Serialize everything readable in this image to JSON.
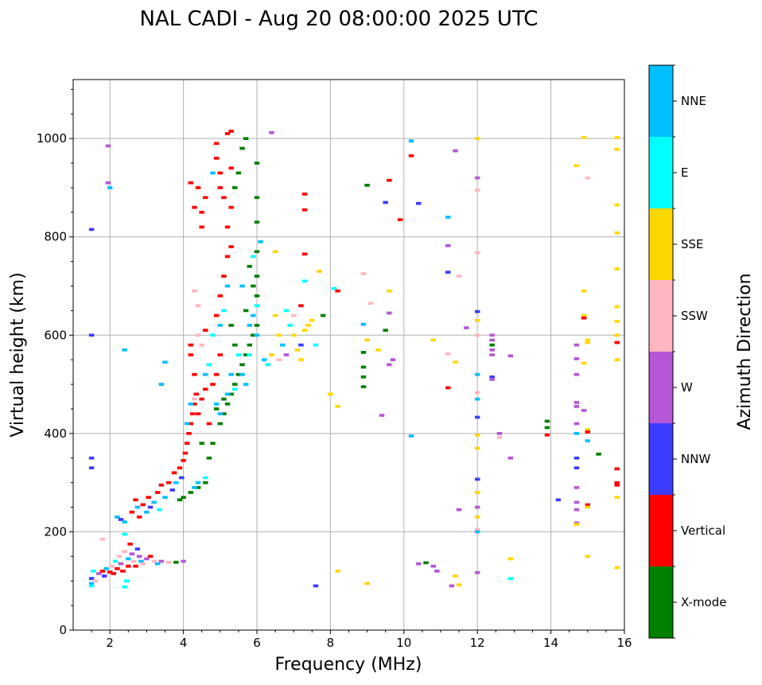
{
  "chart_data": {
    "type": "scatter",
    "title": "NAL CADI - Aug 20 08:00:00 2025 UTC",
    "xlabel": "Frequency (MHz)",
    "ylabel": "Virtual height (km)",
    "xlim": [
      1,
      16
    ],
    "ylim": [
      0,
      1120
    ],
    "xticks": [
      2,
      4,
      6,
      8,
      10,
      12,
      14,
      16
    ],
    "yticks": [
      0,
      200,
      400,
      600,
      800,
      1000
    ],
    "grid": true,
    "colorbar": {
      "label": "Azimuth Direction",
      "categories": [
        "X-mode",
        "Vertical",
        "NNW",
        "W",
        "SSW",
        "SSE",
        "E",
        "NNE"
      ],
      "colors": [
        "#008000",
        "#ff0000",
        "#3c3cff",
        "#b656d6",
        "#ffb6c1",
        "#ffd700",
        "#00ffff",
        "#00bfff"
      ]
    },
    "point_format": [
      "frequency_MHz",
      "height_km",
      "direction_index"
    ],
    "points": [
      [
        1.5,
        95,
        7
      ],
      [
        1.5,
        105,
        2
      ],
      [
        1.55,
        120,
        6
      ],
      [
        1.6,
        100,
        4
      ],
      [
        1.7,
        115,
        3
      ],
      [
        1.8,
        120,
        1
      ],
      [
        1.85,
        110,
        2
      ],
      [
        1.9,
        125,
        7
      ],
      [
        2.0,
        118,
        1
      ],
      [
        2.05,
        130,
        4
      ],
      [
        2.1,
        115,
        1
      ],
      [
        2.15,
        140,
        6
      ],
      [
        2.2,
        125,
        1
      ],
      [
        2.25,
        150,
        4
      ],
      [
        2.3,
        135,
        3
      ],
      [
        2.35,
        120,
        1
      ],
      [
        2.4,
        160,
        4
      ],
      [
        2.45,
        100,
        6
      ],
      [
        2.5,
        130,
        1
      ],
      [
        2.5,
        145,
        7
      ],
      [
        2.55,
        175,
        1
      ],
      [
        2.6,
        155,
        3
      ],
      [
        2.65,
        140,
        4
      ],
      [
        2.7,
        130,
        1
      ],
      [
        2.75,
        165,
        2
      ],
      [
        2.8,
        150,
        3
      ],
      [
        2.85,
        140,
        7
      ],
      [
        2.9,
        135,
        4
      ],
      [
        3.0,
        145,
        3
      ],
      [
        3.1,
        150,
        1
      ],
      [
        3.2,
        140,
        4
      ],
      [
        3.3,
        135,
        7
      ],
      [
        3.4,
        140,
        3
      ],
      [
        3.6,
        138,
        4
      ],
      [
        3.8,
        138,
        0
      ],
      [
        4.0,
        140,
        3
      ],
      [
        1.5,
        90,
        6
      ],
      [
        2.4,
        88,
        6
      ],
      [
        1.8,
        185,
        4
      ],
      [
        2.4,
        195,
        6
      ],
      [
        2.2,
        230,
        7
      ],
      [
        2.3,
        225,
        2
      ],
      [
        2.4,
        220,
        7
      ],
      [
        2.6,
        240,
        1
      ],
      [
        2.7,
        265,
        1
      ],
      [
        2.75,
        250,
        7
      ],
      [
        2.8,
        230,
        1
      ],
      [
        2.9,
        255,
        1
      ],
      [
        3.0,
        240,
        7
      ],
      [
        3.05,
        270,
        1
      ],
      [
        3.1,
        250,
        2
      ],
      [
        3.2,
        260,
        7
      ],
      [
        3.3,
        280,
        1
      ],
      [
        3.35,
        245,
        6
      ],
      [
        3.4,
        295,
        1
      ],
      [
        3.5,
        270,
        7
      ],
      [
        3.6,
        300,
        1
      ],
      [
        3.7,
        285,
        2
      ],
      [
        3.75,
        320,
        1
      ],
      [
        3.8,
        300,
        7
      ],
      [
        3.9,
        330,
        1
      ],
      [
        3.95,
        310,
        2
      ],
      [
        4.0,
        345,
        1
      ],
      [
        4.05,
        360,
        1
      ],
      [
        4.1,
        380,
        1
      ],
      [
        4.15,
        400,
        1
      ],
      [
        4.2,
        420,
        1
      ],
      [
        4.25,
        440,
        1
      ],
      [
        4.3,
        460,
        1
      ],
      [
        4.35,
        480,
        1
      ],
      [
        4.1,
        420,
        7
      ],
      [
        4.2,
        460,
        7
      ],
      [
        4.3,
        470,
        4
      ],
      [
        4.4,
        440,
        1
      ],
      [
        4.5,
        470,
        1
      ],
      [
        4.6,
        490,
        1
      ],
      [
        4.7,
        420,
        1
      ],
      [
        4.8,
        500,
        1
      ],
      [
        4.9,
        520,
        1
      ],
      [
        5.0,
        560,
        1
      ],
      [
        4.2,
        560,
        1
      ],
      [
        4.2,
        580,
        1
      ],
      [
        4.3,
        520,
        1
      ],
      [
        4.4,
        600,
        4
      ],
      [
        4.5,
        580,
        4
      ],
      [
        4.6,
        610,
        1
      ],
      [
        4.7,
        540,
        6
      ],
      [
        4.8,
        600,
        6
      ],
      [
        4.9,
        640,
        1
      ],
      [
        5.0,
        680,
        1
      ],
      [
        5.1,
        720,
        1
      ],
      [
        5.2,
        760,
        1
      ],
      [
        5.0,
        620,
        7
      ],
      [
        5.1,
        650,
        6
      ],
      [
        5.2,
        700,
        7
      ],
      [
        5.3,
        780,
        1
      ],
      [
        5.2,
        820,
        1
      ],
      [
        5.3,
        860,
        1
      ],
      [
        5.1,
        880,
        1
      ],
      [
        5.0,
        930,
        1
      ],
      [
        4.9,
        990,
        1
      ],
      [
        5.2,
        1010,
        1
      ],
      [
        5.3,
        1015,
        1
      ],
      [
        4.5,
        850,
        1
      ],
      [
        4.6,
        880,
        1
      ],
      [
        4.5,
        820,
        1
      ],
      [
        4.3,
        860,
        1
      ],
      [
        4.4,
        900,
        1
      ],
      [
        4.2,
        910,
        1
      ],
      [
        4.9,
        960,
        1
      ],
      [
        5.0,
        900,
        1
      ],
      [
        4.8,
        930,
        7
      ],
      [
        5.3,
        940,
        1
      ],
      [
        4.3,
        690,
        4
      ],
      [
        4.4,
        660,
        4
      ],
      [
        4.6,
        520,
        7
      ],
      [
        3.9,
        265,
        0
      ],
      [
        4.0,
        270,
        0
      ],
      [
        4.2,
        280,
        0
      ],
      [
        4.4,
        290,
        0
      ],
      [
        4.6,
        300,
        0
      ],
      [
        4.7,
        350,
        0
      ],
      [
        4.8,
        380,
        0
      ],
      [
        5.0,
        420,
        0
      ],
      [
        5.1,
        440,
        0
      ],
      [
        5.2,
        460,
        0
      ],
      [
        5.3,
        480,
        0
      ],
      [
        5.4,
        500,
        0
      ],
      [
        5.5,
        520,
        0
      ],
      [
        5.6,
        540,
        0
      ],
      [
        5.7,
        560,
        0
      ],
      [
        5.8,
        580,
        0
      ],
      [
        5.9,
        600,
        0
      ],
      [
        6.0,
        620,
        0
      ],
      [
        6.0,
        680,
        0
      ],
      [
        6.0,
        720,
        0
      ],
      [
        6.0,
        770,
        0
      ],
      [
        6.0,
        830,
        0
      ],
      [
        6.0,
        880,
        0
      ],
      [
        6.0,
        950,
        0
      ],
      [
        5.7,
        1000,
        0
      ],
      [
        5.6,
        980,
        0
      ],
      [
        5.4,
        900,
        0
      ],
      [
        5.5,
        930,
        0
      ],
      [
        5.8,
        740,
        0
      ],
      [
        5.9,
        700,
        0
      ],
      [
        5.7,
        650,
        0
      ],
      [
        5.4,
        580,
        0
      ],
      [
        5.3,
        620,
        0
      ],
      [
        5.1,
        470,
        0
      ],
      [
        4.9,
        450,
        0
      ],
      [
        4.5,
        380,
        0
      ],
      [
        4.3,
        290,
        7
      ],
      [
        4.4,
        300,
        7
      ],
      [
        4.6,
        310,
        6
      ],
      [
        4.9,
        460,
        7
      ],
      [
        5.0,
        440,
        7
      ],
      [
        5.2,
        480,
        7
      ],
      [
        5.4,
        490,
        6
      ],
      [
        5.6,
        520,
        7
      ],
      [
        5.8,
        560,
        6
      ],
      [
        6.0,
        600,
        7
      ],
      [
        5.8,
        620,
        7
      ],
      [
        6.0,
        660,
        6
      ],
      [
        5.9,
        760,
        6
      ],
      [
        6.1,
        790,
        7
      ],
      [
        5.5,
        560,
        6
      ],
      [
        5.7,
        500,
        7
      ],
      [
        5.3,
        520,
        7
      ],
      [
        5.9,
        640,
        7
      ],
      [
        5.6,
        700,
        7
      ],
      [
        6.2,
        550,
        7
      ],
      [
        6.3,
        540,
        6
      ],
      [
        6.4,
        560,
        5
      ],
      [
        6.5,
        640,
        5
      ],
      [
        6.6,
        600,
        5
      ],
      [
        6.7,
        580,
        7
      ],
      [
        6.8,
        560,
        3
      ],
      [
        6.9,
        620,
        6
      ],
      [
        7.0,
        600,
        5
      ],
      [
        7.1,
        570,
        5
      ],
      [
        7.2,
        550,
        5
      ],
      [
        7.3,
        610,
        5
      ],
      [
        7.4,
        620,
        5
      ],
      [
        7.5,
        630,
        5
      ],
      [
        7.6,
        580,
        6
      ],
      [
        6.6,
        550,
        4
      ],
      [
        7.0,
        640,
        4
      ],
      [
        6.8,
        650,
        6
      ],
      [
        7.2,
        580,
        2
      ],
      [
        6.5,
        770,
        5
      ],
      [
        7.3,
        710,
        6
      ],
      [
        7.7,
        730,
        5
      ],
      [
        7.8,
        640,
        0
      ],
      [
        8.1,
        695,
        6
      ],
      [
        8.2,
        690,
        1
      ],
      [
        1.5,
        600,
        2
      ],
      [
        1.5,
        815,
        2
      ],
      [
        1.5,
        350,
        2
      ],
      [
        1.5,
        330,
        2
      ],
      [
        1.95,
        910,
        3
      ],
      [
        1.95,
        985,
        3
      ],
      [
        2.4,
        570,
        7
      ],
      [
        3.4,
        500,
        7
      ],
      [
        3.5,
        545,
        7
      ],
      [
        6.4,
        1012,
        3
      ],
      [
        7.3,
        887,
        1
      ],
      [
        7.3,
        855,
        1
      ],
      [
        7.3,
        765,
        1
      ],
      [
        7.2,
        660,
        1
      ],
      [
        8.0,
        480,
        5
      ],
      [
        8.2,
        455,
        5
      ],
      [
        8.2,
        120,
        5
      ],
      [
        9.0,
        905,
        0
      ],
      [
        8.9,
        565,
        0
      ],
      [
        8.9,
        535,
        0
      ],
      [
        8.9,
        515,
        0
      ],
      [
        8.9,
        495,
        0
      ],
      [
        8.9,
        725,
        4
      ],
      [
        8.9,
        622,
        7
      ],
      [
        9.1,
        665,
        4
      ],
      [
        9.0,
        590,
        5
      ],
      [
        9.0,
        95,
        5
      ],
      [
        9.3,
        570,
        5
      ],
      [
        9.4,
        437,
        3
      ],
      [
        9.5,
        610,
        0
      ],
      [
        9.6,
        690,
        5
      ],
      [
        9.6,
        645,
        3
      ],
      [
        9.7,
        550,
        3
      ],
      [
        9.6,
        540,
        3
      ],
      [
        9.6,
        915,
        1
      ],
      [
        9.5,
        870,
        2
      ],
      [
        9.9,
        835,
        1
      ],
      [
        10.2,
        995,
        7
      ],
      [
        10.2,
        965,
        1
      ],
      [
        10.2,
        395,
        7
      ],
      [
        10.4,
        868,
        2
      ],
      [
        10.4,
        135,
        3
      ],
      [
        10.6,
        137,
        0
      ],
      [
        10.8,
        130,
        3
      ],
      [
        10.8,
        590,
        5
      ],
      [
        10.9,
        120,
        3
      ],
      [
        11.2,
        840,
        7
      ],
      [
        11.2,
        782,
        3
      ],
      [
        11.2,
        728,
        2
      ],
      [
        11.2,
        562,
        4
      ],
      [
        11.2,
        493,
        1
      ],
      [
        11.3,
        90,
        3
      ],
      [
        11.4,
        975,
        3
      ],
      [
        11.5,
        720,
        4
      ],
      [
        11.4,
        545,
        5
      ],
      [
        11.4,
        110,
        5
      ],
      [
        11.5,
        92,
        5
      ],
      [
        11.5,
        245,
        3
      ],
      [
        11.7,
        615,
        3
      ],
      [
        12.0,
        1000,
        5
      ],
      [
        12.0,
        920,
        3
      ],
      [
        12.0,
        895,
        4
      ],
      [
        12.0,
        768,
        4
      ],
      [
        12.0,
        648,
        2
      ],
      [
        12.0,
        630,
        5
      ],
      [
        12.0,
        600,
        4
      ],
      [
        12.0,
        520,
        7
      ],
      [
        12.0,
        483,
        4
      ],
      [
        12.0,
        470,
        7
      ],
      [
        12.0,
        433,
        2
      ],
      [
        12.0,
        397,
        5
      ],
      [
        12.0,
        370,
        5
      ],
      [
        12.0,
        307,
        2
      ],
      [
        12.0,
        280,
        5
      ],
      [
        12.0,
        250,
        3
      ],
      [
        12.0,
        230,
        5
      ],
      [
        12.0,
        205,
        4
      ],
      [
        12.0,
        200,
        7
      ],
      [
        12.0,
        117,
        3
      ],
      [
        12.4,
        600,
        3
      ],
      [
        12.4,
        590,
        3
      ],
      [
        12.4,
        580,
        0
      ],
      [
        12.4,
        570,
        3
      ],
      [
        12.4,
        560,
        3
      ],
      [
        12.4,
        515,
        2
      ],
      [
        12.4,
        510,
        3
      ],
      [
        12.6,
        400,
        3
      ],
      [
        12.6,
        392,
        4
      ],
      [
        12.9,
        558,
        3
      ],
      [
        12.9,
        350,
        3
      ],
      [
        12.9,
        145,
        5
      ],
      [
        12.9,
        105,
        6
      ],
      [
        13.9,
        425,
        0
      ],
      [
        13.9,
        412,
        0
      ],
      [
        13.9,
        397,
        1
      ],
      [
        14.2,
        265,
        2
      ],
      [
        14.7,
        945,
        5
      ],
      [
        14.7,
        580,
        3
      ],
      [
        14.7,
        552,
        3
      ],
      [
        14.7,
        520,
        3
      ],
      [
        14.7,
        463,
        3
      ],
      [
        14.7,
        455,
        3
      ],
      [
        14.7,
        420,
        3
      ],
      [
        14.7,
        400,
        7
      ],
      [
        14.7,
        350,
        2
      ],
      [
        14.7,
        330,
        2
      ],
      [
        14.7,
        290,
        3
      ],
      [
        14.7,
        260,
        3
      ],
      [
        14.7,
        245,
        3
      ],
      [
        14.7,
        218,
        3
      ],
      [
        14.7,
        215,
        5
      ],
      [
        14.9,
        1002,
        5
      ],
      [
        15.0,
        920,
        4
      ],
      [
        14.9,
        690,
        5
      ],
      [
        14.9,
        640,
        5
      ],
      [
        14.9,
        635,
        1
      ],
      [
        15.0,
        590,
        5
      ],
      [
        15.0,
        585,
        5
      ],
      [
        14.9,
        543,
        5
      ],
      [
        14.9,
        447,
        3
      ],
      [
        15.0,
        408,
        5
      ],
      [
        15.0,
        403,
        1
      ],
      [
        15.0,
        385,
        7
      ],
      [
        15.0,
        255,
        1
      ],
      [
        15.0,
        250,
        5
      ],
      [
        15.0,
        150,
        5
      ],
      [
        15.3,
        358,
        0
      ],
      [
        15.8,
        1002,
        5
      ],
      [
        15.8,
        978,
        5
      ],
      [
        15.8,
        865,
        5
      ],
      [
        15.8,
        808,
        5
      ],
      [
        15.8,
        735,
        5
      ],
      [
        15.8,
        658,
        5
      ],
      [
        15.8,
        628,
        5
      ],
      [
        15.8,
        600,
        5
      ],
      [
        15.8,
        585,
        1
      ],
      [
        15.8,
        550,
        5
      ],
      [
        15.8,
        328,
        1
      ],
      [
        15.8,
        300,
        1
      ],
      [
        15.8,
        295,
        1
      ],
      [
        15.8,
        270,
        5
      ],
      [
        15.8,
        127,
        5
      ],
      [
        7.6,
        90,
        2
      ],
      [
        2.0,
        900,
        7
      ]
    ]
  }
}
